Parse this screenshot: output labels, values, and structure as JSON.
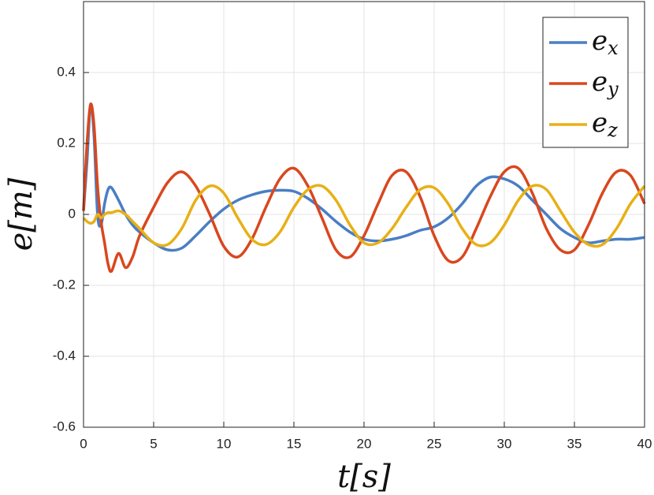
{
  "chart_data": {
    "type": "line",
    "xlabel": "t[s]",
    "ylabel": "e[m]",
    "x": [
      0,
      0.25,
      0.5,
      0.75,
      1,
      1.25,
      1.5,
      1.75,
      2,
      2.5,
      3,
      3.5,
      4,
      5,
      6,
      7,
      8,
      9,
      10,
      11,
      12,
      13,
      14,
      15,
      16,
      17,
      18,
      19,
      20,
      21,
      22,
      23,
      24,
      25,
      26,
      27,
      28,
      29,
      30,
      31,
      32,
      33,
      34,
      35,
      36,
      37,
      38,
      39,
      40
    ],
    "series": [
      {
        "name": "ex",
        "color": "#4a7ec4",
        "values": [
          0.01,
          0.15,
          0.31,
          0.22,
          0,
          -0.03,
          0.03,
          0.07,
          0.075,
          0.04,
          0,
          -0.03,
          -0.05,
          -0.08,
          -0.1,
          -0.095,
          -0.06,
          -0.02,
          0.015,
          0.04,
          0.055,
          0.065,
          0.068,
          0.065,
          0.045,
          0.015,
          -0.02,
          -0.05,
          -0.07,
          -0.075,
          -0.07,
          -0.06,
          -0.045,
          -0.035,
          -0.01,
          0.03,
          0.08,
          0.105,
          0.1,
          0.08,
          0.04,
          0,
          -0.04,
          -0.065,
          -0.08,
          -0.075,
          -0.07,
          -0.07,
          -0.065
        ]
      },
      {
        "name": "ey",
        "color": "#d9471e",
        "values": [
          0.01,
          0.2,
          0.31,
          0.25,
          0.08,
          -0.02,
          -0.08,
          -0.14,
          -0.16,
          -0.11,
          -0.15,
          -0.12,
          -0.06,
          0.02,
          0.09,
          0.12,
          0.08,
          0,
          -0.09,
          -0.12,
          -0.07,
          0.02,
          0.1,
          0.13,
          0.08,
          -0.01,
          -0.1,
          -0.12,
          -0.06,
          0.03,
          0.11,
          0.12,
          0.05,
          -0.06,
          -0.13,
          -0.12,
          -0.04,
          0.05,
          0.12,
          0.13,
          0.06,
          -0.04,
          -0.1,
          -0.1,
          -0.03,
          0.06,
          0.12,
          0.11,
          0.03
        ]
      },
      {
        "name": "ez",
        "color": "#e8b016",
        "values": [
          -0.01,
          -0.02,
          -0.025,
          -0.02,
          0,
          -0.01,
          0,
          0.005,
          0.005,
          0.01,
          0,
          -0.02,
          -0.04,
          -0.08,
          -0.085,
          -0.04,
          0.04,
          0.08,
          0.06,
          -0.01,
          -0.07,
          -0.085,
          -0.05,
          0.02,
          0.07,
          0.08,
          0.04,
          -0.03,
          -0.08,
          -0.08,
          -0.04,
          0.02,
          0.07,
          0.075,
          0.03,
          -0.04,
          -0.085,
          -0.08,
          -0.03,
          0.04,
          0.08,
          0.07,
          0.01,
          -0.05,
          -0.085,
          -0.085,
          -0.04,
          0.03,
          0.08
        ]
      }
    ],
    "xlim": [
      0,
      40
    ],
    "xticks": [
      0,
      5,
      10,
      15,
      20,
      25,
      30,
      35,
      40
    ],
    "ylim": [
      -0.6,
      0.6
    ],
    "yticks": [
      -0.6,
      -0.4,
      -0.2,
      0,
      0.2,
      0.4
    ],
    "grid": true,
    "legend": "northeast"
  }
}
